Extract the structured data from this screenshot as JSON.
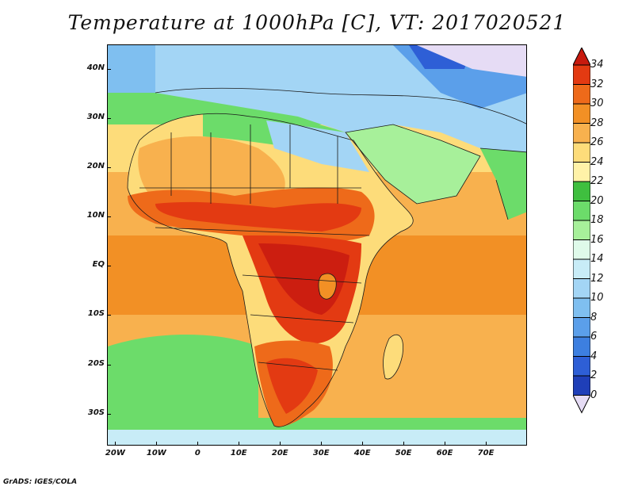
{
  "title": "Temperature at 1000hPa [C], VT: 2017020521",
  "credit": "GrADS: IGES/COLA",
  "map": {
    "lon_range": [
      -22,
      80
    ],
    "lat_range": [
      -36.5,
      45
    ],
    "lat_ticks": [
      {
        "value": 40,
        "label": "40N"
      },
      {
        "value": 30,
        "label": "30N"
      },
      {
        "value": 20,
        "label": "20N"
      },
      {
        "value": 10,
        "label": "10N"
      },
      {
        "value": 0,
        "label": "EQ"
      },
      {
        "value": -10,
        "label": "10S"
      },
      {
        "value": -20,
        "label": "20S"
      },
      {
        "value": -30,
        "label": "30S"
      }
    ],
    "lon_ticks": [
      {
        "value": -20,
        "label": "20W"
      },
      {
        "value": -10,
        "label": "10W"
      },
      {
        "value": 0,
        "label": "0"
      },
      {
        "value": 10,
        "label": "10E"
      },
      {
        "value": 20,
        "label": "20E"
      },
      {
        "value": 30,
        "label": "30E"
      },
      {
        "value": 40,
        "label": "40E"
      },
      {
        "value": 50,
        "label": "50E"
      },
      {
        "value": 60,
        "label": "60E"
      },
      {
        "value": 70,
        "label": "70E"
      }
    ]
  },
  "colorbar": {
    "levels": [
      0,
      2,
      4,
      6,
      8,
      10,
      12,
      14,
      16,
      18,
      20,
      22,
      24,
      26,
      28,
      30,
      32,
      34
    ],
    "colors": [
      "#2a1f8f",
      "#1f3fb8",
      "#2e5fd6",
      "#3d7fe0",
      "#5b9fea",
      "#7fbff0",
      "#a3d5f5",
      "#c8ecf7",
      "#dffaea",
      "#a7f09a",
      "#6cdc6a",
      "#3fbf3f",
      "#fff2a8",
      "#fddc7a",
      "#f8b14e",
      "#f29025",
      "#ee6a1a",
      "#e33a12",
      "#cc1e10"
    ],
    "under_color": "#e6dcf5",
    "over_color": "#c81a0e"
  }
}
